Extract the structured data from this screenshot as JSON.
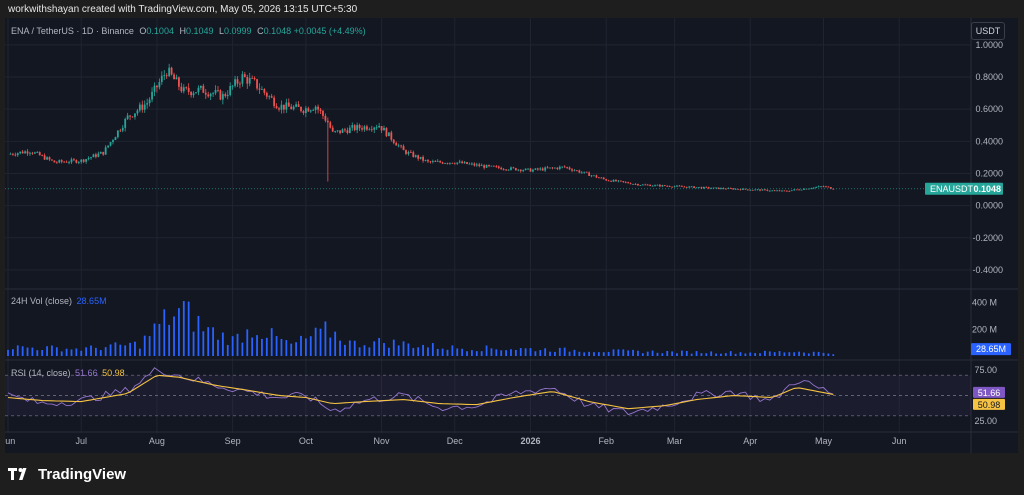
{
  "header": {
    "attribution": "workwithshayan created with TradingView.com, May 05, 2026 13:15 UTC+5:30"
  },
  "footer": {
    "brand": "TradingView",
    "logo_icon": "tradingview-logo-icon"
  },
  "currency_button": "USDT",
  "chart_data": {
    "type": "candlestick",
    "title": "ENA / TetherUS · 1D · Binance",
    "symbol": "ENAUSDT",
    "ohlc": {
      "O": "0.1004",
      "H": "0.1049",
      "L": "0.0999",
      "C": "0.1048",
      "change": "+0.0045 (+4.49%)"
    },
    "last_price": "0.1048",
    "colors": {
      "up": "#26a69a",
      "down": "#ef5350",
      "volume": "#2962ff",
      "rsi": "#9575cd",
      "rsi_ma": "#f5c242"
    },
    "price_axis": {
      "ylim": [
        -0.5,
        1.08
      ],
      "ticks": [
        "1.0000",
        "0.8000",
        "0.6000",
        "0.4000",
        "0.2000",
        "0.0000",
        "-0.2000",
        "-0.4000"
      ],
      "tick_values": [
        1.0,
        0.8,
        0.6,
        0.4,
        0.2,
        0.0,
        -0.2,
        -0.4
      ]
    },
    "x_axis": {
      "labels": [
        "Jun",
        "Jul",
        "Aug",
        "Sep",
        "Oct",
        "Nov",
        "Dec",
        "2026",
        "Feb",
        "Mar",
        "Apr",
        "May",
        "Jun"
      ],
      "label_dates": [
        "2025-06-01",
        "2025-07-01",
        "2025-08-01",
        "2025-09-01",
        "2025-10-01",
        "2025-11-01",
        "2025-12-01",
        "2026-01-01",
        "2026-02-01",
        "2026-03-01",
        "2026-04-01",
        "2026-05-01",
        "2026-06-01"
      ],
      "start_date": "2025-06-01",
      "end_date": "2026-06-30"
    },
    "price_series": {
      "dates": [
        "2025-06-01",
        "2025-06-10",
        "2025-06-20",
        "2025-07-01",
        "2025-07-10",
        "2025-07-20",
        "2025-07-28",
        "2025-08-05",
        "2025-08-12",
        "2025-08-20",
        "2025-08-28",
        "2025-09-05",
        "2025-09-10",
        "2025-09-20",
        "2025-09-30",
        "2025-10-05",
        "2025-10-10",
        "2025-10-12",
        "2025-10-20",
        "2025-10-31",
        "2025-11-10",
        "2025-11-20",
        "2025-12-01",
        "2025-12-15",
        "2026-01-01",
        "2026-01-15",
        "2026-02-01",
        "2026-02-15",
        "2026-03-01",
        "2026-03-15",
        "2026-04-01",
        "2026-04-15",
        "2026-05-01",
        "2026-05-05"
      ],
      "close": [
        0.32,
        0.34,
        0.27,
        0.28,
        0.33,
        0.55,
        0.64,
        0.84,
        0.71,
        0.72,
        0.68,
        0.8,
        0.76,
        0.62,
        0.6,
        0.62,
        0.52,
        0.45,
        0.48,
        0.5,
        0.34,
        0.27,
        0.27,
        0.24,
        0.22,
        0.24,
        0.16,
        0.13,
        0.12,
        0.11,
        0.1,
        0.09,
        0.12,
        0.1048
      ]
    },
    "volume": {
      "axis_ticks": [
        "400 M",
        "200 M"
      ],
      "tick_values": [
        400,
        200
      ],
      "max": 480,
      "last": "28.65M",
      "legend": "24H Vol (close)",
      "dates": [
        "2025-06-01",
        "2025-07-01",
        "2025-07-25",
        "2025-08-05",
        "2025-08-12",
        "2025-08-20",
        "2025-09-01",
        "2025-09-10",
        "2025-09-25",
        "2025-10-10",
        "2025-10-20",
        "2025-11-01",
        "2025-11-15",
        "2025-12-01",
        "2026-01-01",
        "2026-02-01",
        "2026-03-01",
        "2026-04-01",
        "2026-04-20",
        "2026-05-05"
      ],
      "values": [
        90,
        70,
        120,
        380,
        450,
        280,
        160,
        280,
        110,
        260,
        120,
        140,
        110,
        80,
        70,
        50,
        40,
        35,
        45,
        28.65
      ]
    },
    "rsi": {
      "legend": "RSI (14, close)",
      "value": "51.66",
      "ma_value": "50.98",
      "axis_ticks": [
        "75.00",
        "25.00"
      ],
      "tick_values": [
        75,
        25
      ],
      "bands": [
        70,
        50,
        30
      ],
      "ylim": [
        18,
        82
      ],
      "dates": [
        "2025-06-01",
        "2025-06-15",
        "2025-07-01",
        "2025-07-20",
        "2025-08-01",
        "2025-08-10",
        "2025-08-25",
        "2025-09-05",
        "2025-09-20",
        "2025-10-01",
        "2025-10-12",
        "2025-10-25",
        "2025-11-10",
        "2025-11-25",
        "2025-12-10",
        "2025-12-25",
        "2026-01-10",
        "2026-01-25",
        "2026-02-10",
        "2026-02-25",
        "2026-03-10",
        "2026-03-25",
        "2026-04-10",
        "2026-04-20",
        "2026-05-05"
      ],
      "values": [
        50,
        42,
        45,
        55,
        76,
        70,
        60,
        55,
        48,
        50,
        35,
        45,
        50,
        38,
        40,
        52,
        58,
        40,
        33,
        40,
        50,
        54,
        44,
        66,
        51.66
      ],
      "ma": [
        48,
        45,
        44,
        52,
        70,
        68,
        60,
        56,
        50,
        48,
        42,
        44,
        46,
        42,
        41,
        48,
        54,
        44,
        37,
        40,
        46,
        50,
        48,
        58,
        50.98
      ]
    }
  }
}
